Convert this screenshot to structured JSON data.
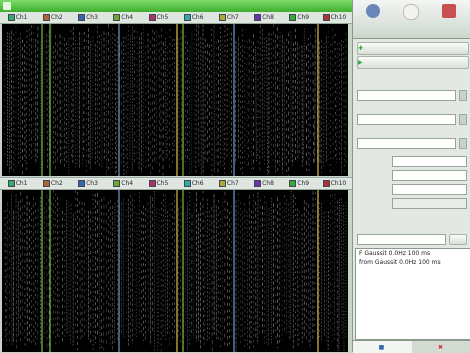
{
  "window": {
    "title": ""
  },
  "panel1": {
    "channels": [
      {
        "label": "Ch1",
        "color": "#3a6"
      },
      {
        "label": "Ch2",
        "color": "#a63"
      },
      {
        "label": "Ch3",
        "color": "#36a"
      },
      {
        "label": "Ch4",
        "color": "#6a3"
      },
      {
        "label": "Ch5",
        "color": "#a36"
      },
      {
        "label": "Ch6",
        "color": "#3aa"
      },
      {
        "label": "Ch7",
        "color": "#aa3"
      },
      {
        "label": "Ch8",
        "color": "#63a"
      },
      {
        "label": "Ch9",
        "color": "#3a3"
      },
      {
        "label": "Ch10",
        "color": "#a33"
      }
    ],
    "time_ticks": [
      "",
      "",
      "",
      "",
      "",
      "",
      "",
      "",
      "",
      ""
    ]
  },
  "panel2": {
    "channels": [
      {
        "label": "Ch1",
        "color": "#3a6"
      },
      {
        "label": "Ch2",
        "color": "#a63"
      },
      {
        "label": "Ch3",
        "color": "#36a"
      },
      {
        "label": "Ch4",
        "color": "#6a3"
      },
      {
        "label": "Ch5",
        "color": "#a36"
      },
      {
        "label": "Ch6",
        "color": "#3aa"
      },
      {
        "label": "Ch7",
        "color": "#aa3"
      },
      {
        "label": "Ch8",
        "color": "#63a"
      },
      {
        "label": "Ch9",
        "color": "#3a3"
      },
      {
        "label": "Ch10",
        "color": "#a33"
      }
    ]
  },
  "toolbar": {
    "b1": "",
    "b2": "",
    "b3": ""
  },
  "controls": {
    "btn1": "",
    "btn2": "",
    "lbl1": "",
    "lbl2": "",
    "lbl3": "",
    "lbl4": "",
    "val4": "",
    "lbl5": "",
    "val5": "",
    "lbl6": "",
    "val6": "",
    "lbl7": "",
    "val7": ""
  },
  "notes": {
    "line1": "F  Gaussit 0.0Hz 100 ms",
    "line2": "from Gaussit 0.0Hz 100 ms"
  },
  "tabs": {
    "t1": "",
    "t2": ""
  },
  "colors": {
    "trace": "#dcdcdc",
    "marker_green": "#7fbf3f",
    "marker_blue": "#6aa0d0",
    "marker_yellow": "#d8c44a"
  }
}
